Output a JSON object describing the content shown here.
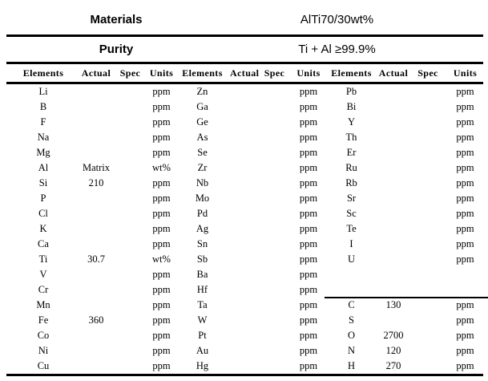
{
  "header": {
    "materials_label": "Materials",
    "materials_value": "AlTi70/30wt%",
    "purity_label": "Purity",
    "purity_value": "Ti + Al ≥99.9%"
  },
  "column_headers": [
    "Elements",
    "Actual",
    "Spec",
    "Units"
  ],
  "colors": {
    "text": "#000000",
    "background": "#ffffff",
    "rule": "#000000"
  },
  "table": {
    "row_count": 19,
    "group3_divider_above_row_index": 14,
    "groups": [
      {
        "name": "group-1",
        "rows": [
          {
            "element": "Li",
            "actual": "",
            "spec": "",
            "units": "ppm"
          },
          {
            "element": "B",
            "actual": "",
            "spec": "",
            "units": "ppm"
          },
          {
            "element": "F",
            "actual": "",
            "spec": "",
            "units": "ppm"
          },
          {
            "element": "Na",
            "actual": "",
            "spec": "",
            "units": "ppm"
          },
          {
            "element": "Mg",
            "actual": "",
            "spec": "",
            "units": "ppm"
          },
          {
            "element": "Al",
            "actual": "Matrix",
            "spec": "",
            "units": "wt%"
          },
          {
            "element": "Si",
            "actual": "210",
            "spec": "",
            "units": "ppm"
          },
          {
            "element": "P",
            "actual": "",
            "spec": "",
            "units": "ppm"
          },
          {
            "element": "Cl",
            "actual": "",
            "spec": "",
            "units": "ppm"
          },
          {
            "element": "K",
            "actual": "",
            "spec": "",
            "units": "ppm"
          },
          {
            "element": "Ca",
            "actual": "",
            "spec": "",
            "units": "ppm"
          },
          {
            "element": "Ti",
            "actual": "30.7",
            "spec": "",
            "units": "wt%"
          },
          {
            "element": "V",
            "actual": "",
            "spec": "",
            "units": "ppm"
          },
          {
            "element": "Cr",
            "actual": "",
            "spec": "",
            "units": "ppm"
          },
          {
            "element": "Mn",
            "actual": "",
            "spec": "",
            "units": "ppm"
          },
          {
            "element": "Fe",
            "actual": "360",
            "spec": "",
            "units": "ppm"
          },
          {
            "element": "Co",
            "actual": "",
            "spec": "",
            "units": "ppm"
          },
          {
            "element": "Ni",
            "actual": "",
            "spec": "",
            "units": "ppm"
          },
          {
            "element": "Cu",
            "actual": "",
            "spec": "",
            "units": "ppm"
          }
        ]
      },
      {
        "name": "group-2",
        "rows": [
          {
            "element": "Zn",
            "actual": "",
            "spec": "",
            "units": "ppm"
          },
          {
            "element": "Ga",
            "actual": "",
            "spec": "",
            "units": "ppm"
          },
          {
            "element": "Ge",
            "actual": "",
            "spec": "",
            "units": "ppm"
          },
          {
            "element": "As",
            "actual": "",
            "spec": "",
            "units": "ppm"
          },
          {
            "element": "Se",
            "actual": "",
            "spec": "",
            "units": "ppm"
          },
          {
            "element": "Zr",
            "actual": "",
            "spec": "",
            "units": "ppm"
          },
          {
            "element": "Nb",
            "actual": "",
            "spec": "",
            "units": "ppm"
          },
          {
            "element": "Mo",
            "actual": "",
            "spec": "",
            "units": "ppm"
          },
          {
            "element": "Pd",
            "actual": "",
            "spec": "",
            "units": "ppm"
          },
          {
            "element": "Ag",
            "actual": "",
            "spec": "",
            "units": "ppm"
          },
          {
            "element": "Sn",
            "actual": "",
            "spec": "",
            "units": "ppm"
          },
          {
            "element": "Sb",
            "actual": "",
            "spec": "",
            "units": "ppm"
          },
          {
            "element": "Ba",
            "actual": "",
            "spec": "",
            "units": "ppm"
          },
          {
            "element": "Hf",
            "actual": "",
            "spec": "",
            "units": "ppm"
          },
          {
            "element": "Ta",
            "actual": "",
            "spec": "",
            "units": "ppm"
          },
          {
            "element": "W",
            "actual": "",
            "spec": "",
            "units": "ppm"
          },
          {
            "element": "Pt",
            "actual": "",
            "spec": "",
            "units": "ppm"
          },
          {
            "element": "Au",
            "actual": "",
            "spec": "",
            "units": "ppm"
          },
          {
            "element": "Hg",
            "actual": "",
            "spec": "",
            "units": "ppm"
          }
        ]
      },
      {
        "name": "group-3",
        "rows": [
          {
            "element": "Pb",
            "actual": "",
            "spec": "",
            "units": "ppm"
          },
          {
            "element": "Bi",
            "actual": "",
            "spec": "",
            "units": "ppm"
          },
          {
            "element": "Y",
            "actual": "",
            "spec": "",
            "units": "ppm"
          },
          {
            "element": "Th",
            "actual": "",
            "spec": "",
            "units": "ppm"
          },
          {
            "element": "Er",
            "actual": "",
            "spec": "",
            "units": "ppm"
          },
          {
            "element": "Ru",
            "actual": "",
            "spec": "",
            "units": "ppm"
          },
          {
            "element": "Rb",
            "actual": "",
            "spec": "",
            "units": "ppm"
          },
          {
            "element": "Sr",
            "actual": "",
            "spec": "",
            "units": "ppm"
          },
          {
            "element": "Sc",
            "actual": "",
            "spec": "",
            "units": "ppm"
          },
          {
            "element": "Te",
            "actual": "",
            "spec": "",
            "units": "ppm"
          },
          {
            "element": "I",
            "actual": "",
            "spec": "",
            "units": "ppm"
          },
          {
            "element": "U",
            "actual": "",
            "spec": "",
            "units": "ppm"
          },
          {
            "element": "",
            "actual": "",
            "spec": "",
            "units": ""
          },
          {
            "element": "",
            "actual": "",
            "spec": "",
            "units": ""
          },
          {
            "element": "C",
            "actual": "130",
            "spec": "",
            "units": "ppm"
          },
          {
            "element": "S",
            "actual": "",
            "spec": "",
            "units": "ppm"
          },
          {
            "element": "O",
            "actual": "2700",
            "spec": "",
            "units": "ppm"
          },
          {
            "element": "N",
            "actual": "120",
            "spec": "",
            "units": "ppm"
          },
          {
            "element": "H",
            "actual": "270",
            "spec": "",
            "units": "ppm"
          }
        ]
      }
    ]
  }
}
